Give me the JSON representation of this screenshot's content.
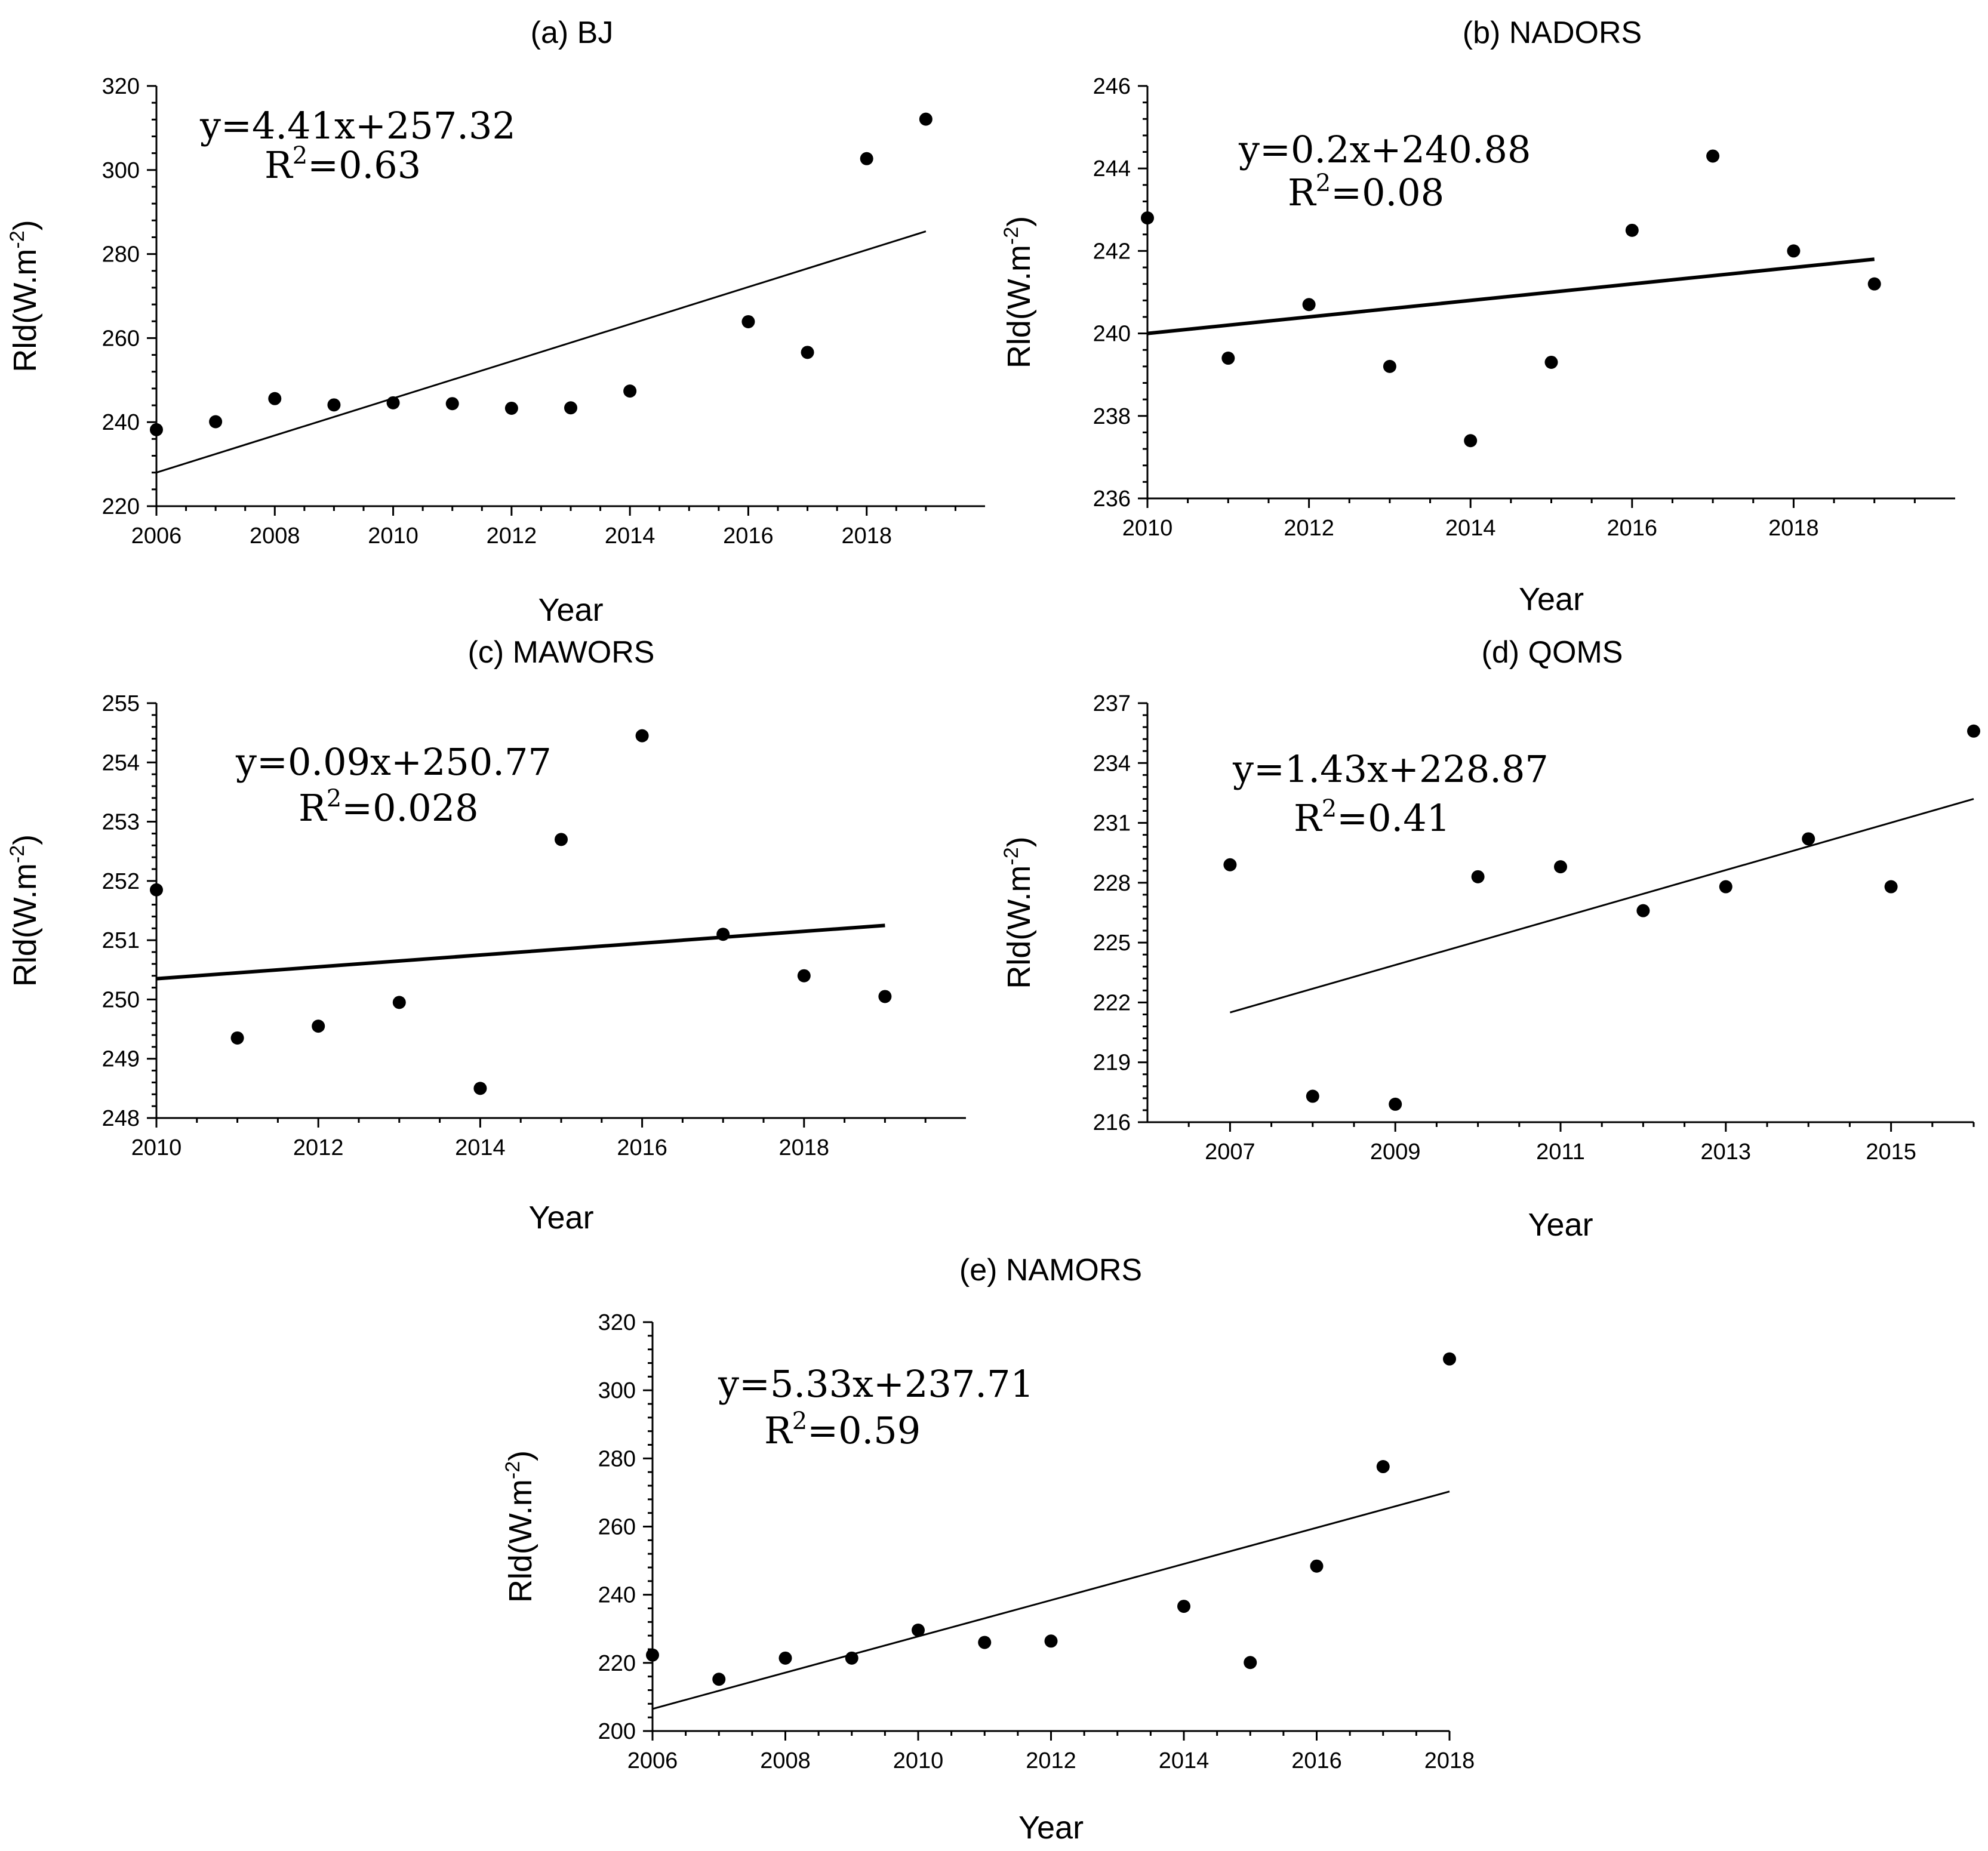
{
  "chart_data": [
    {
      "type": "scatter",
      "title": "(a) BJ",
      "xlabel": "Year",
      "ylabel": "Rld(W.m-2)",
      "xlim": [
        2006,
        2020
      ],
      "ylim": [
        220,
        320
      ],
      "xticks": [
        2006,
        2008,
        2010,
        2012,
        2014,
        2016,
        2018
      ],
      "yticks": [
        220,
        240,
        260,
        280,
        300,
        320
      ],
      "x": [
        2006,
        2007,
        2008,
        2009,
        2010,
        2011,
        2012,
        2013,
        2014,
        2016,
        2017,
        2018,
        2019
      ],
      "y": [
        238.2,
        240.1,
        245.6,
        244.1,
        244.6,
        244.4,
        243.3,
        243.4,
        247.4,
        263.9,
        256.6,
        302.7,
        312.1
      ],
      "fit": {
        "slope": 4.41,
        "intercept": 257.32,
        "x": [
          2006,
          2019
        ],
        "y": [
          228.0,
          285.4
        ]
      },
      "equation": "y=4.41x+257.32",
      "r2_label": "R",
      "r2_value": "=0.63"
    },
    {
      "type": "scatter",
      "title": "(b) NADORS",
      "xlabel": "Year",
      "ylabel": "Rld(W.m-2)",
      "xlim": [
        2010,
        2020
      ],
      "ylim": [
        236,
        246
      ],
      "xticks": [
        2010,
        2012,
        2014,
        2016,
        2018
      ],
      "yticks": [
        236,
        238,
        240,
        242,
        244,
        246
      ],
      "x": [
        2010,
        2011,
        2012,
        2013,
        2014,
        2015,
        2016,
        2017,
        2018,
        2019
      ],
      "y": [
        242.8,
        239.4,
        240.7,
        239.2,
        237.4,
        239.3,
        242.5,
        244.3,
        242.0,
        241.2
      ],
      "fit": {
        "slope": 0.2,
        "intercept": 240.88,
        "x": [
          2010,
          2019
        ],
        "y": [
          240.0,
          241.8
        ]
      },
      "equation": "y=0.2x+240.88",
      "r2_label": "R",
      "r2_value": "=0.08"
    },
    {
      "type": "scatter",
      "title": "(c) MAWORS",
      "xlabel": "Year",
      "ylabel": "Rld(W.m-2)",
      "xlim": [
        2010,
        2020
      ],
      "ylim": [
        248,
        255
      ],
      "xticks": [
        2010,
        2012,
        2014,
        2016,
        2018
      ],
      "yticks": [
        248,
        249,
        250,
        251,
        252,
        253,
        254,
        255
      ],
      "x": [
        2010,
        2011,
        2012,
        2013,
        2014,
        2015,
        2016,
        2017,
        2018,
        2019
      ],
      "y": [
        251.85,
        249.35,
        249.55,
        249.95,
        248.5,
        252.7,
        254.45,
        251.1,
        250.4,
        250.05
      ],
      "fit": {
        "slope": 0.09,
        "intercept": 250.77,
        "x": [
          2010,
          2019
        ],
        "y": [
          250.35,
          251.25
        ]
      },
      "equation": "y=0.09x+250.77",
      "r2_label": "R",
      "r2_value": "=0.028"
    },
    {
      "type": "scatter",
      "title": "(d) QOMS",
      "xlabel": "Year",
      "ylabel": "Rld(W.m-2)",
      "xlim": [
        2006,
        2016
      ],
      "ylim": [
        216,
        237
      ],
      "xticks": [
        2007,
        2009,
        2011,
        2013,
        2015
      ],
      "yticks": [
        216,
        219,
        222,
        225,
        228,
        231,
        234,
        237
      ],
      "x": [
        2007,
        2008,
        2009,
        2010,
        2011,
        2012,
        2013,
        2014,
        2015,
        2016
      ],
      "y": [
        228.9,
        217.3,
        216.9,
        228.3,
        228.8,
        226.6,
        227.8,
        230.2,
        227.8,
        235.6
      ],
      "fit": {
        "slope": 1.43,
        "intercept": 228.87,
        "x": [
          2007,
          2016
        ],
        "y": [
          221.5,
          232.2
        ]
      },
      "equation": "y=1.43x+228.87",
      "r2_label": "R",
      "r2_value": "=0.41"
    },
    {
      "type": "scatter",
      "title": "(e) NAMORS",
      "xlabel": "Year",
      "ylabel": "Rld(W.m-2)",
      "xlim": [
        2006,
        2018
      ],
      "ylim": [
        200,
        320
      ],
      "xticks": [
        2006,
        2008,
        2010,
        2012,
        2014,
        2016,
        2018
      ],
      "yticks": [
        200,
        220,
        240,
        260,
        280,
        300,
        320
      ],
      "x": [
        2006,
        2007,
        2008,
        2009,
        2010,
        2011,
        2012,
        2014,
        2015,
        2016,
        2017,
        2018
      ],
      "y": [
        222.3,
        215.2,
        221.4,
        221.4,
        229.6,
        226.0,
        226.4,
        236.6,
        220.1,
        248.4,
        277.6,
        309.2
      ],
      "fit": {
        "slope": 5.33,
        "intercept": 237.71,
        "x": [
          2006,
          2018
        ],
        "y": [
          206.5,
          270.3
        ]
      },
      "equation": "y=5.33x+237.71",
      "r2_label": "R",
      "r2_value": "=0.59"
    }
  ]
}
